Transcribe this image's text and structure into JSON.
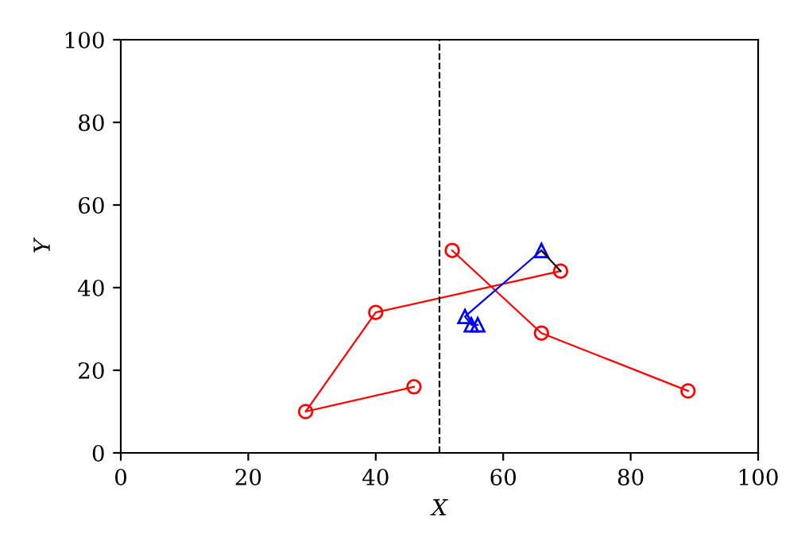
{
  "chart_data": {
    "type": "line",
    "xlabel": "X",
    "ylabel": "Y",
    "xlim": [
      0,
      100
    ],
    "ylim": [
      0,
      100
    ],
    "xticks": [
      0,
      20,
      40,
      60,
      80,
      100
    ],
    "yticks": [
      0,
      20,
      40,
      60,
      80,
      100
    ],
    "grid": false,
    "legend": false,
    "line_style": "solid",
    "series": [
      {
        "color": "#ff0000",
        "marker": "circle",
        "x": [
          46,
          29,
          40,
          69
        ],
        "values": [
          16,
          10,
          34,
          44
        ]
      },
      {
        "color": "#ff0000",
        "marker": "circle",
        "x": [
          52,
          66,
          89
        ],
        "values": [
          49,
          29,
          15
        ]
      },
      {
        "color": "#0000ff",
        "marker": "triangle",
        "x": [
          66,
          54,
          55,
          56
        ],
        "values": [
          49,
          33,
          31,
          31
        ]
      },
      {
        "color": "#000000",
        "marker": "none",
        "x": [
          66,
          69
        ],
        "values": [
          49,
          44
        ]
      }
    ],
    "ref_lines": [
      {
        "axis": "x",
        "value": 50,
        "color": "#000000",
        "line_style": "dashed"
      }
    ]
  }
}
